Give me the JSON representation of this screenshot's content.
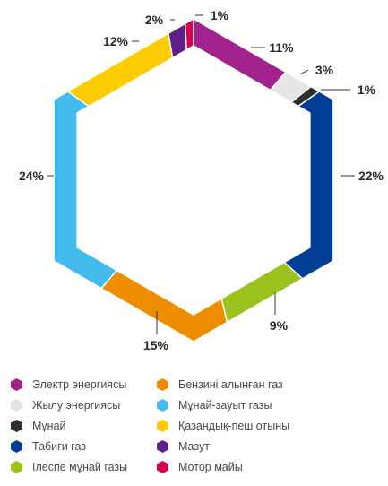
{
  "chart_data": {
    "type": "pie",
    "style": "hexagonal-donut",
    "slices": [
      {
        "label": "Электр энергиясы",
        "value": 11,
        "value_label": "11%",
        "color": "#a2238e"
      },
      {
        "label": "Жылу энергиясы",
        "value": 3,
        "value_label": "3%",
        "color": "#e6e6e6"
      },
      {
        "label": "Мұнай",
        "value": 1,
        "value_label": "1%",
        "color": "#2e2e2e"
      },
      {
        "label": "Табиғи газ",
        "value": 22,
        "value_label": "22%",
        "color": "#003e95"
      },
      {
        "label": "Ілеспе мұнай газы",
        "value": 9,
        "value_label": "9%",
        "color": "#9bc21c"
      },
      {
        "label": "Бензині алынған газ",
        "value": 15,
        "value_label": "15%",
        "color": "#ee8d00"
      },
      {
        "label": "Мұнай-зауыт газы",
        "value": 24,
        "value_label": "24%",
        "color": "#44bbed"
      },
      {
        "label": "Қазандық-пеш отыны",
        "value": 12,
        "value_label": "12%",
        "color": "#fccb00"
      },
      {
        "label": "Мазут",
        "value": 2,
        "value_label": "2%",
        "color": "#5e1f88"
      },
      {
        "label": "Мотор майы",
        "value": 1,
        "value_label": "1%",
        "color": "#d5004f"
      }
    ],
    "legend_position": "bottom"
  }
}
